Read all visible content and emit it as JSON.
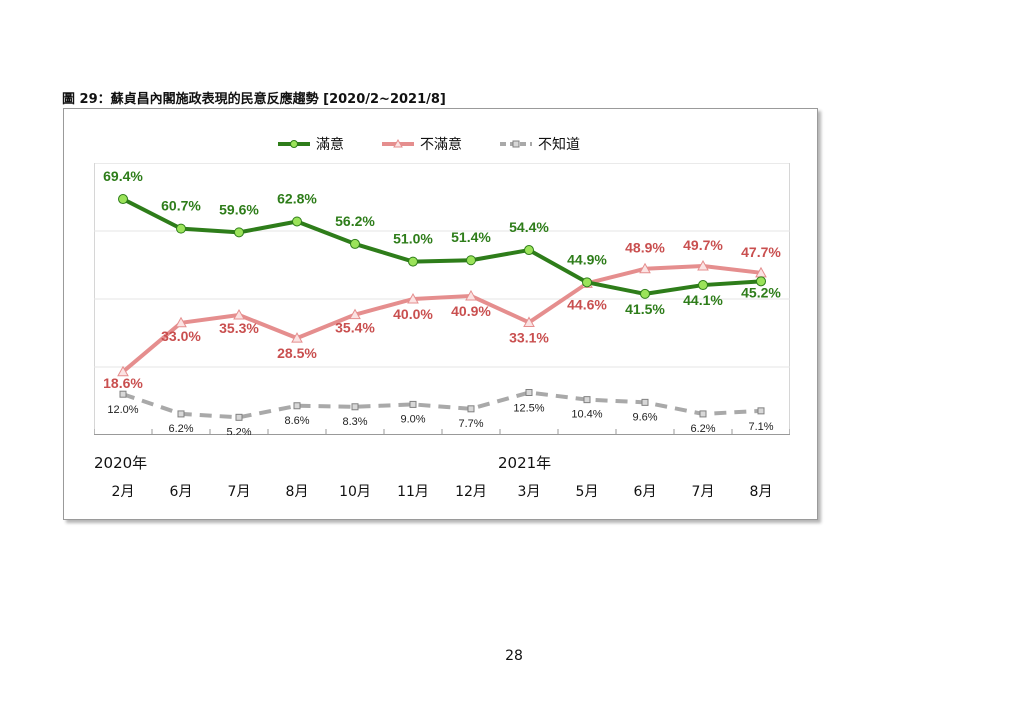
{
  "caption": "圖 29：蘇貞昌內閣施政表現的民意反應趨勢 [2020/2~2021/8]",
  "page_number": "28",
  "year_labels": [
    "2020年",
    "2021年"
  ],
  "chart_data": {
    "type": "line",
    "title": "圖 29：蘇貞昌內閣施政表現的民意反應趨勢 [2020/2~2021/8]",
    "categories": [
      "2月",
      "6月",
      "7月",
      "8月",
      "10月",
      "11月",
      "12月",
      "3月",
      "5月",
      "6月",
      "7月",
      "8月"
    ],
    "ylim": [
      0,
      80
    ],
    "grid": true,
    "legend": "top-center",
    "series": [
      {
        "name": "滿意",
        "color": "#2e7d1a",
        "marker_color": "#9be35a",
        "marker": "circle",
        "values": [
          69.4,
          60.7,
          59.6,
          62.8,
          56.2,
          51.0,
          51.4,
          54.4,
          44.9,
          41.5,
          44.1,
          45.2
        ],
        "labels": [
          "69.4%",
          "60.7%",
          "59.6%",
          "62.8%",
          "56.2%",
          "51.0%",
          "51.4%",
          "54.4%",
          "44.9%",
          "41.5%",
          "44.1%",
          "45.2%"
        ]
      },
      {
        "name": "不滿意",
        "color": "#e58e8e",
        "label_color": "#c94f4f",
        "marker": "triangle",
        "values": [
          18.6,
          33.0,
          35.3,
          28.5,
          35.4,
          40.0,
          40.9,
          33.1,
          44.6,
          48.9,
          49.7,
          47.7
        ],
        "labels": [
          "18.6%",
          "33.0%",
          "35.3%",
          "28.5%",
          "35.4%",
          "40.0%",
          "40.9%",
          "33.1%",
          "44.6%",
          "48.9%",
          "49.7%",
          "47.7%"
        ]
      },
      {
        "name": "不知道",
        "color": "#a9a9a9",
        "marker": "square",
        "dashed": true,
        "values": [
          12.0,
          6.2,
          5.2,
          8.6,
          8.3,
          9.0,
          7.7,
          12.5,
          10.4,
          9.6,
          6.2,
          7.1
        ],
        "labels": [
          "12.0%",
          "6.2%",
          "5.2%",
          "8.6%",
          "8.3%",
          "9.0%",
          "7.7%",
          "12.5%",
          "10.4%",
          "9.6%",
          "6.2%",
          "7.1%"
        ]
      }
    ]
  }
}
